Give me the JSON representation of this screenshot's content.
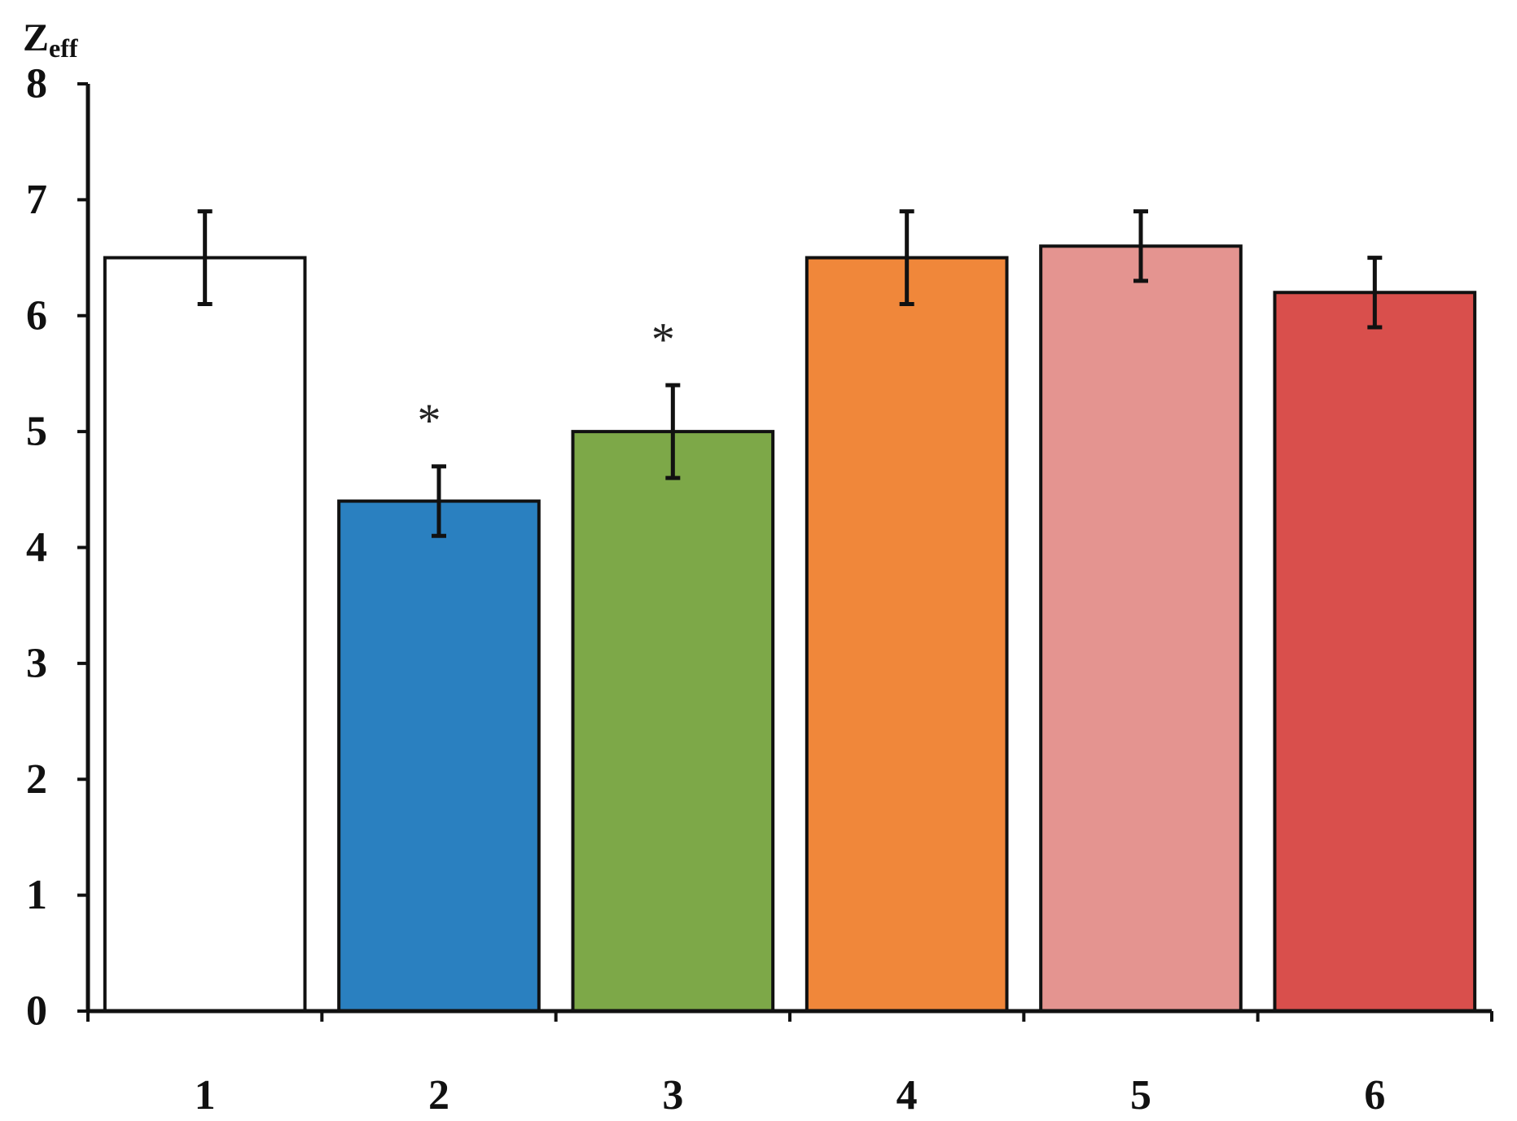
{
  "chart_data": {
    "type": "bar",
    "title": "",
    "xlabel": "",
    "ylabel": "Z",
    "ylabel_subscript": "eff",
    "ylim": [
      0,
      8
    ],
    "yticks": [
      "0",
      "1",
      "2",
      "3",
      "4",
      "5",
      "6",
      "7",
      "8"
    ],
    "categories": [
      "1",
      "2",
      "3",
      "4",
      "5",
      "6"
    ],
    "values": [
      6.5,
      4.4,
      5.0,
      6.5,
      6.6,
      6.2
    ],
    "errors": [
      0.4,
      0.3,
      0.4,
      0.4,
      0.3,
      0.3
    ],
    "significance": [
      "",
      "*",
      "*",
      "",
      "",
      ""
    ],
    "colors": [
      "#ffffff",
      "#2a80c0",
      "#7da848",
      "#f0873a",
      "#e49490",
      "#d94f4c"
    ],
    "grid": false,
    "legend": "none"
  }
}
